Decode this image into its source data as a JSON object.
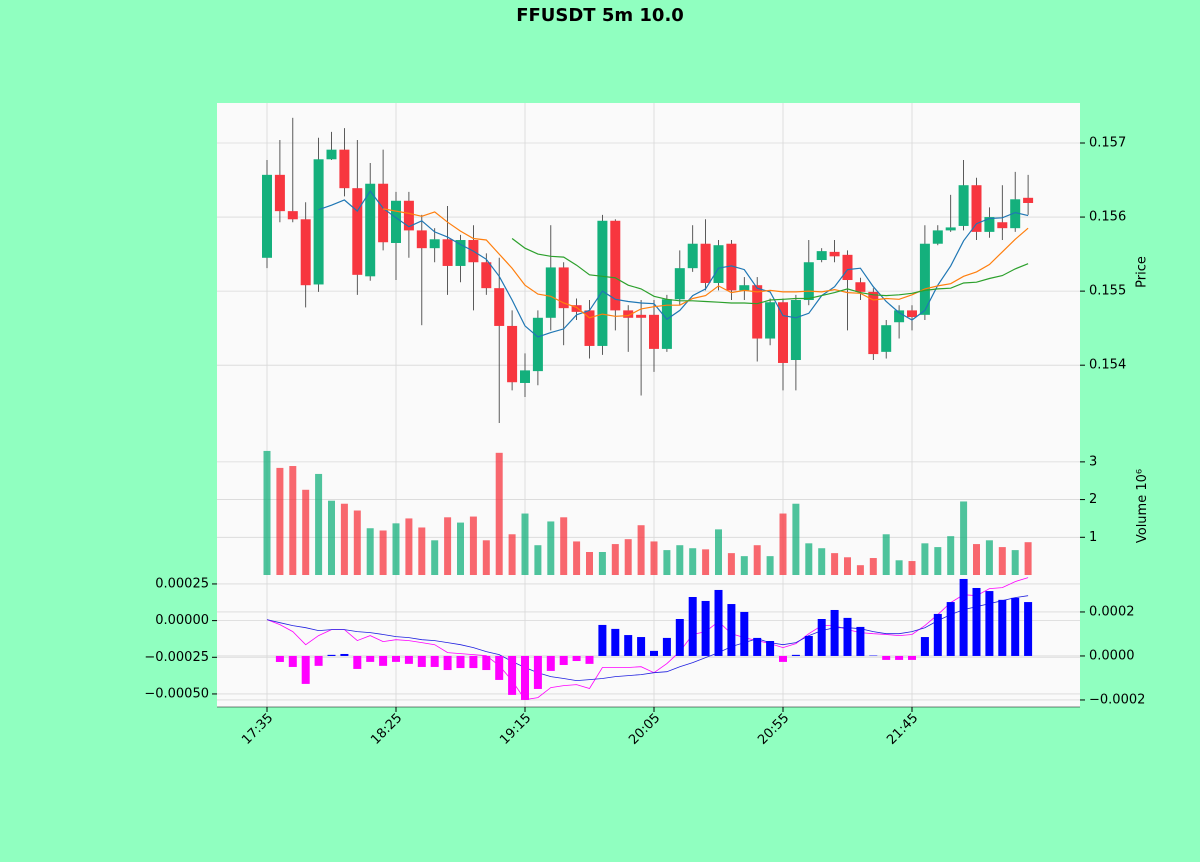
{
  "chart_data": [
    {
      "type": "candlestick",
      "title": "FFUSDT 5m 10.0",
      "ylabel": "Price",
      "categories": [
        "17:35",
        null,
        null,
        null,
        null,
        null,
        null,
        null,
        null,
        null,
        "18:25",
        null,
        null,
        null,
        null,
        null,
        null,
        null,
        null,
        null,
        "19:15",
        null,
        null,
        null,
        null,
        null,
        null,
        null,
        null,
        null,
        "20:05",
        null,
        null,
        null,
        null,
        null,
        null,
        null,
        null,
        null,
        "20:55",
        null,
        null,
        null,
        null,
        null,
        null,
        null,
        null,
        null,
        "21:45",
        null,
        null,
        null,
        null,
        null,
        null,
        null,
        null,
        null
      ],
      "open": [
        0.15545,
        0.15657,
        0.15608,
        0.15597,
        0.15509,
        0.15678,
        0.15691,
        0.15639,
        0.1552,
        0.15645,
        0.15565,
        0.15622,
        0.15582,
        0.15558,
        0.1557,
        0.15534,
        0.15569,
        0.15539,
        0.15504,
        0.15453,
        0.15376,
        0.15392,
        0.15464,
        0.15532,
        0.15481,
        0.15474,
        0.15426,
        0.15595,
        0.15474,
        0.15468,
        0.15468,
        0.15422,
        0.15489,
        0.15531,
        0.15564,
        0.15511,
        0.15564,
        0.15501,
        0.15508,
        0.15436,
        0.15485,
        0.15407,
        0.15488,
        0.15542,
        0.15553,
        0.15549,
        0.15512,
        0.15499,
        0.15418,
        0.15458,
        0.15474,
        0.15468,
        0.15564,
        0.15582,
        0.15588,
        0.15643,
        0.1558,
        0.15593,
        0.15585,
        0.15626
      ],
      "high": [
        0.15677,
        0.15704,
        0.15734,
        0.1562,
        0.15707,
        0.15715,
        0.1572,
        0.15704,
        0.15673,
        0.15691,
        0.15634,
        0.15634,
        0.15603,
        0.15585,
        0.15615,
        0.15576,
        0.15589,
        0.15551,
        0.15545,
        0.15474,
        0.15416,
        0.15474,
        0.15589,
        0.15539,
        0.1549,
        0.15488,
        0.15603,
        0.15597,
        0.15481,
        0.15488,
        0.15488,
        0.15495,
        0.15555,
        0.15589,
        0.15597,
        0.15569,
        0.15569,
        0.15519,
        0.15519,
        0.1549,
        0.1549,
        0.15495,
        0.15569,
        0.15558,
        0.15569,
        0.15555,
        0.15518,
        0.15504,
        0.15461,
        0.15481,
        0.15481,
        0.15589,
        0.15589,
        0.1563,
        0.15677,
        0.15653,
        0.15613,
        0.15643,
        0.15661,
        0.15657
      ],
      "low": [
        0.15531,
        0.15593,
        0.15593,
        0.15478,
        0.15499,
        0.15677,
        0.15628,
        0.15495,
        0.15514,
        0.15555,
        0.15515,
        0.15545,
        0.15454,
        0.15539,
        0.15495,
        0.15512,
        0.15474,
        0.15495,
        0.15322,
        0.15366,
        0.15357,
        0.15373,
        0.15447,
        0.15427,
        0.15461,
        0.15409,
        0.15414,
        0.15447,
        0.15418,
        0.15359,
        0.15391,
        0.15418,
        0.15481,
        0.15526,
        0.15501,
        0.15501,
        0.15488,
        0.15488,
        0.15405,
        0.15427,
        0.15366,
        0.15366,
        0.15481,
        0.15539,
        0.15539,
        0.15447,
        0.15488,
        0.15407,
        0.15409,
        0.15436,
        0.15447,
        0.15461,
        0.15562,
        0.1558,
        0.15582,
        0.15569,
        0.15572,
        0.15569,
        0.1558,
        0.15603
      ],
      "close": [
        0.15657,
        0.15608,
        0.15597,
        0.15508,
        0.15678,
        0.15691,
        0.15639,
        0.15522,
        0.15645,
        0.15566,
        0.15622,
        0.15582,
        0.15558,
        0.1557,
        0.15534,
        0.15569,
        0.15539,
        0.15504,
        0.15453,
        0.15377,
        0.15393,
        0.15464,
        0.15532,
        0.15477,
        0.15472,
        0.15426,
        0.15595,
        0.15474,
        0.15464,
        0.15464,
        0.15422,
        0.15489,
        0.15531,
        0.15564,
        0.15511,
        0.15562,
        0.15501,
        0.15508,
        0.15436,
        0.15485,
        0.15403,
        0.15488,
        0.15539,
        0.15554,
        0.15547,
        0.15515,
        0.15499,
        0.15415,
        0.15454,
        0.15474,
        0.15465,
        0.15564,
        0.15582,
        0.15586,
        0.15643,
        0.1558,
        0.156,
        0.15585,
        0.15624,
        0.15619
      ],
      "up_color": "#14b07c",
      "down_color": "#f7363f",
      "series": [
        {
          "color": "#1f77b4",
          "values": [
            null,
            null,
            null,
            null,
            0.1561,
            0.15616,
            0.15623,
            0.15608,
            0.15635,
            0.15612,
            0.15599,
            0.15587,
            0.15595,
            0.1558,
            0.15573,
            0.15563,
            0.15554,
            0.15543,
            0.1552,
            0.15488,
            0.15453,
            0.15438,
            0.15444,
            0.15449,
            0.15468,
            0.15474,
            0.155,
            0.15489,
            0.15486,
            0.15484,
            0.15483,
            0.15462,
            0.15474,
            0.15494,
            0.15503,
            0.15531,
            0.15534,
            0.15529,
            0.15504,
            0.15499,
            0.15467,
            0.15464,
            0.1547,
            0.15494,
            0.15506,
            0.15529,
            0.15531,
            0.15506,
            0.15486,
            0.15471,
            0.15461,
            0.15474,
            0.15508,
            0.15534,
            0.15568,
            0.15591,
            0.15598,
            0.15599,
            0.15606,
            0.15602
          ]
        },
        {
          "color": "#ff7f0e",
          "values": [
            null,
            null,
            null,
            null,
            null,
            null,
            null,
            null,
            null,
            0.15611,
            0.15608,
            0.15605,
            0.15601,
            0.15607,
            0.15593,
            0.15581,
            0.15571,
            0.15569,
            0.1555,
            0.15531,
            0.15508,
            0.15496,
            0.15493,
            0.15484,
            0.15478,
            0.15464,
            0.15469,
            0.15466,
            0.15467,
            0.15476,
            0.15479,
            0.15481,
            0.15481,
            0.1549,
            0.15494,
            0.15507,
            0.15498,
            0.15501,
            0.15499,
            0.15501,
            0.15499,
            0.15499,
            0.155,
            0.15499,
            0.15502,
            0.15498,
            0.15497,
            0.15488,
            0.1549,
            0.15489,
            0.15495,
            0.15503,
            0.15507,
            0.1551,
            0.1552,
            0.15526,
            0.15536,
            0.15553,
            0.1557,
            0.15585
          ]
        },
        {
          "color": "#2ca02c",
          "values": [
            null,
            null,
            null,
            null,
            null,
            null,
            null,
            null,
            null,
            null,
            null,
            null,
            null,
            null,
            null,
            null,
            null,
            null,
            null,
            0.15571,
            0.15558,
            0.1555,
            0.15547,
            0.15546,
            0.15535,
            0.15522,
            0.1552,
            0.15518,
            0.15508,
            0.15503,
            0.15493,
            0.15489,
            0.15487,
            0.15487,
            0.15486,
            0.15485,
            0.15484,
            0.15484,
            0.15483,
            0.15488,
            0.15489,
            0.1549,
            0.1549,
            0.15494,
            0.15498,
            0.15503,
            0.15498,
            0.15495,
            0.15494,
            0.15495,
            0.15497,
            0.15501,
            0.15503,
            0.15504,
            0.15511,
            0.15512,
            0.15517,
            0.15521,
            0.1553,
            0.15537
          ]
        }
      ],
      "ylim": [
        0.15299,
        0.15754
      ],
      "yticks": [
        0.154,
        0.155,
        0.156,
        0.157
      ],
      "grid": true
    },
    {
      "type": "volume",
      "ylabel": "Volume",
      "offset_label": "10⁶",
      "values": [
        3.29,
        2.84,
        2.89,
        2.26,
        2.68,
        1.97,
        1.89,
        1.71,
        1.24,
        1.18,
        1.37,
        1.5,
        1.26,
        0.92,
        1.53,
        1.39,
        1.55,
        0.92,
        3.24,
        1.08,
        1.63,
        0.79,
        1.42,
        1.53,
        0.89,
        0.61,
        0.61,
        0.82,
        0.95,
        1.32,
        0.89,
        0.66,
        0.79,
        0.71,
        0.68,
        1.21,
        0.58,
        0.5,
        0.79,
        0.5,
        1.63,
        1.89,
        0.84,
        0.71,
        0.58,
        0.47,
        0.26,
        0.45,
        1.08,
        0.39,
        0.37,
        0.84,
        0.74,
        1.03,
        1.95,
        0.82,
        0.92,
        0.74,
        0.66,
        0.87
      ],
      "ylim": [
        0,
        3.58
      ],
      "yticks": [
        1,
        2,
        3
      ],
      "grid": true
    },
    {
      "type": "macd",
      "series": [
        {
          "kind": "line",
          "color": "#ff00ff",
          "values": [
            7e-06,
            -2.7e-05,
            -7.5e-05,
            -0.000164,
            -0.000102,
            -6.1e-05,
            -6.1e-05,
            -0.000136,
            -0.000102,
            -0.000143,
            -0.00013,
            -0.000136,
            -0.00015,
            -0.000164,
            -0.000218,
            -0.000225,
            -0.000232,
            -0.000239,
            -0.000307,
            -0.000409,
            -0.000539,
            -0.000525,
            -0.000457,
            -0.000443,
            -0.000436,
            -0.000463,
            -0.00032,
            -0.00032,
            -0.00032,
            -0.000314,
            -0.000355,
            -0.000293,
            -0.000211,
            -9.5e-05,
            -7.5e-05,
            -7e-06,
            -8.9e-05,
            -0.000116,
            -0.000136,
            -0.000157,
            -0.000184,
            -0.000157,
            -8.9e-05,
            -3.4e-05,
            -3.4e-05,
            -6.1e-05,
            -8.2e-05,
            -8.9e-05,
            -9.5e-05,
            -0.000102,
            -9.5e-05,
            -3.4e-05,
            4.1e-05,
            0.000123,
            0.000177,
            0.00017,
            0.000218,
            0.000225,
            0.000266,
            0.000293
          ]
        },
        {
          "kind": "line",
          "color": "#2020e0",
          "values": [
            7e-06,
            -1.4e-05,
            -3.4e-05,
            -4.8e-05,
            -6.8e-05,
            -6.1e-05,
            -6.1e-05,
            -7.5e-05,
            -8.2e-05,
            -9.5e-05,
            -0.000109,
            -0.000116,
            -0.00013,
            -0.000136,
            -0.00015,
            -0.000164,
            -0.000184,
            -0.000211,
            -0.000232,
            -0.000279,
            -0.00032,
            -0.000355,
            -0.000382,
            -0.000395,
            -0.000409,
            -0.000402,
            -0.000395,
            -0.000382,
            -0.000375,
            -0.000368,
            -0.000355,
            -0.000348,
            -0.000314,
            -0.000286,
            -0.000252,
            -0.000218,
            -0.000177,
            -0.00015,
            -0.000123,
            -0.00015,
            -0.000164,
            -0.00015,
            -0.000102,
            -6.8e-05,
            -4.8e-05,
            -4.8e-05,
            -5.5e-05,
            -7.5e-05,
            -8.9e-05,
            -8.9e-05,
            -7.5e-05,
            -4.8e-05,
            0,
            4.1e-05,
            7.5e-05,
            9.5e-05,
            0.000116,
            0.000136,
            0.000157,
            0.00017
          ]
        },
        {
          "kind": "histogram",
          "axis": "y2",
          "up_color": "#0000ff",
          "down_color": "#ff00ff",
          "values": [
            0,
            -2.73e-05,
            -5e-05,
            -0.000127,
            -4.5e-05,
            5e-06,
            9e-06,
            -5.9e-05,
            -2.7e-05,
            -4.5e-05,
            -2.7e-05,
            -3.6e-05,
            -5e-05,
            -5e-05,
            -6.4e-05,
            -5.5e-05,
            -5.5e-05,
            -6.4e-05,
            -0.000109,
            -0.000177,
            -0.0002,
            -0.00015,
            -6.8e-05,
            -4.1e-05,
            -2.3e-05,
            -3.6e-05,
            0.000141,
            0.000123,
            9.5e-05,
            8.6e-05,
            2.3e-05,
            8.2e-05,
            0.000168,
            0.000268,
            0.00025,
            0.0003,
            0.000236,
            0.0002,
            8.2e-05,
            6.8e-05,
            -2.7e-05,
            5e-06,
            9.1e-05,
            0.000168,
            0.000209,
            0.000173,
            0.000132,
            2e-06,
            -1.8e-05,
            -1.8e-05,
            -1.8e-05,
            8.6e-05,
            0.000191,
            0.000245,
            0.00035,
            0.000309,
            0.000295,
            0.000255,
            0.000264,
            0.000245
          ]
        }
      ],
      "ylim": [
        -0.000589,
        0.000311
      ],
      "yticks": [
        {
          "value": 0.00025,
          "label": "0.00025"
        },
        {
          "value": 0,
          "label": "0.00000"
        },
        {
          "value": -0.00025,
          "label": "−0.00025"
        },
        {
          "value": -0.0005,
          "label": "−0.00050"
        }
      ],
      "y2lim": [
        -0.000232,
        0.000368
      ],
      "y2ticks": [
        0.0002,
        {
          "value": 0,
          "label": "0.0000"
        },
        {
          "value": -0.0002,
          "label": "−0.0002"
        }
      ],
      "grid": true
    }
  ]
}
